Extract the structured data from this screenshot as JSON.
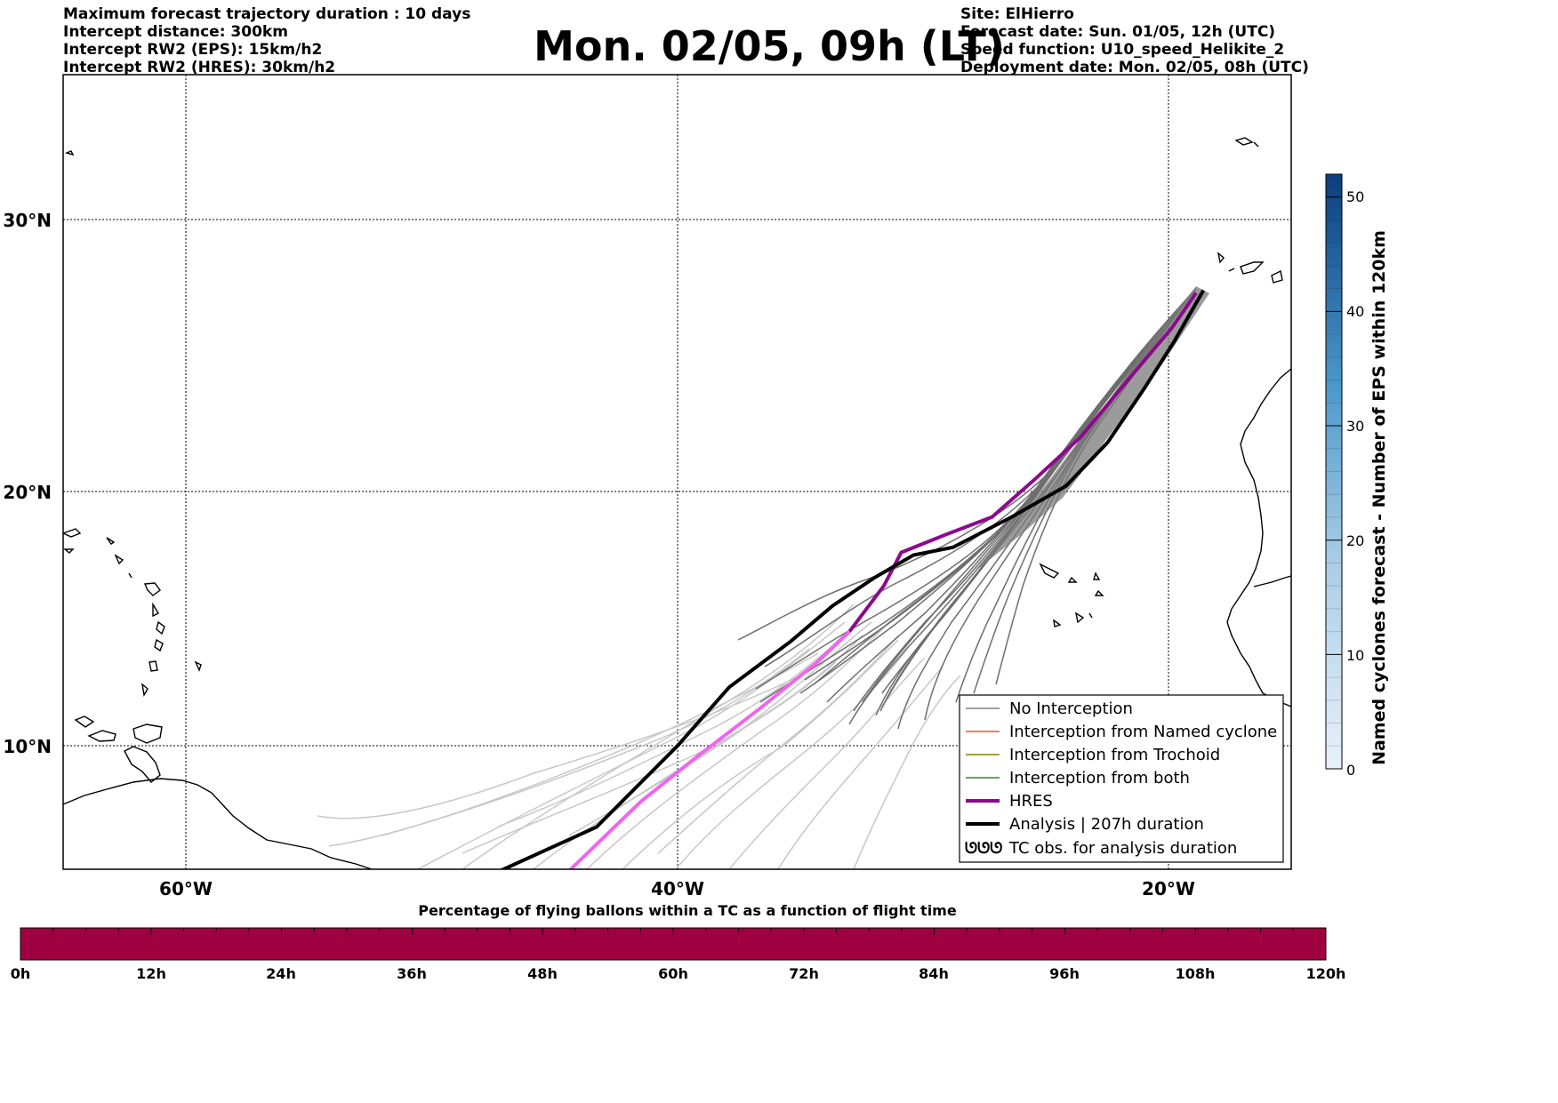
{
  "header_left": [
    "Maximum forecast trajectory duration : 10 days",
    "Intercept distance: 300km",
    "Intercept RW2 (EPS):  15km/h2",
    "Intercept RW2 (HRES): 30km/h2"
  ],
  "title": "Mon. 02/05, 09h (LT)",
  "header_right": [
    "Site: ElHierro",
    "Forecast date: Sun. 01/05, 12h (UTC)",
    "Speed function: U10_speed_Helikite_2",
    "Deployment date: Mon. 02/05, 08h (UTC)"
  ],
  "map": {
    "lat_labels": [
      "30°N",
      "20°N",
      "10°N"
    ],
    "lon_labels": [
      "60°W",
      "40°W",
      "20°W"
    ]
  },
  "legend": [
    {
      "label": "No Interception",
      "color": "#808080"
    },
    {
      "label": "Interception from Named cyclone",
      "color": "#e4572e"
    },
    {
      "label": "Interception from Trochoid",
      "color": "#808000"
    },
    {
      "label": "Interception from both",
      "color": "#2e8b2e"
    },
    {
      "label": "HRES",
      "color": "#8b0a8b"
    },
    {
      "label": "Analysis | 207h duration",
      "color": "#000000"
    },
    {
      "label": "TC obs. for analysis duration",
      "color": "#000000",
      "symbol": "ᘎᘎᘎ"
    }
  ],
  "colorbar": {
    "label": "Named cyclones forecast - Number of EPS within 120km",
    "ticks": [
      "0",
      "10",
      "20",
      "30",
      "40",
      "50"
    ]
  },
  "bottom_bar": {
    "title": "Percentage of flying ballons within a TC as a function of flight time",
    "ticks": [
      "0h",
      "12h",
      "24h",
      "36h",
      "48h",
      "60h",
      "72h",
      "84h",
      "96h",
      "108h",
      "120h"
    ],
    "color": "#9e0040"
  },
  "chart_data": {
    "type": "map",
    "hres_track_lonlat": [
      [
        -18.9,
        27.3
      ],
      [
        -19.9,
        26.0
      ],
      [
        -21.3,
        24.5
      ],
      [
        -23.6,
        22.0
      ],
      [
        -25.4,
        20.5
      ],
      [
        -27.2,
        19.0
      ],
      [
        -29.1,
        18.3
      ],
      [
        -30.9,
        17.6
      ],
      [
        -31.6,
        16.3
      ],
      [
        -33.0,
        14.5
      ],
      [
        -34.3,
        13.3
      ],
      [
        -36.6,
        11.5
      ],
      [
        -39.3,
        9.5
      ],
      [
        -41.5,
        7.8
      ],
      [
        -44.5,
        5.0
      ]
    ],
    "analysis_track_lonlat": [
      [
        -18.6,
        27.4
      ],
      [
        -19.8,
        25.5
      ],
      [
        -21.0,
        23.8
      ],
      [
        -22.5,
        21.8
      ],
      [
        -24.2,
        20.2
      ],
      [
        -26.4,
        19.0
      ],
      [
        -28.8,
        17.8
      ],
      [
        -30.4,
        17.5
      ],
      [
        -32.0,
        16.6
      ],
      [
        -33.7,
        15.5
      ],
      [
        -35.4,
        14.1
      ],
      [
        -37.9,
        12.3
      ],
      [
        -40.0,
        10.0
      ],
      [
        -43.3,
        6.8
      ],
      [
        -47.4,
        5.0
      ]
    ]
  }
}
